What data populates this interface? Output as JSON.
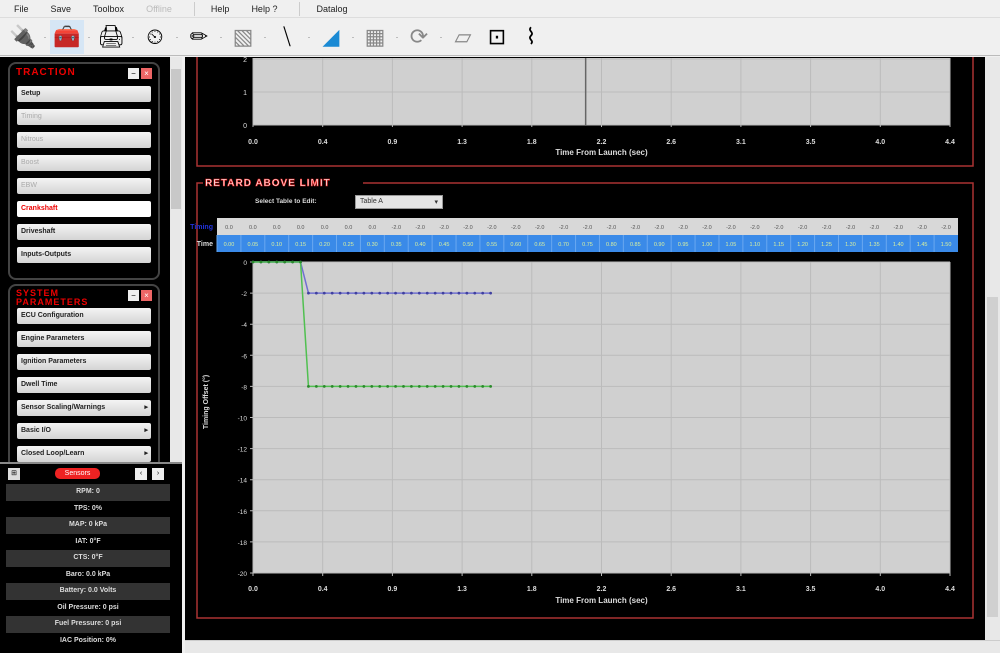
{
  "menu": [
    {
      "label": "File",
      "enabled": true
    },
    {
      "label": "Save",
      "enabled": true
    },
    {
      "label": "Toolbox",
      "enabled": true
    },
    {
      "label": "Offline",
      "enabled": false
    },
    {
      "label": "Help",
      "enabled": true
    },
    {
      "label": "Help ?",
      "enabled": true
    },
    {
      "label": "Datalog",
      "enabled": true
    }
  ],
  "toolbar": [
    "usb-cable-icon",
    "ecu-red-icon",
    "ecu-module-icon",
    "gauge-icon",
    "injector-icon",
    "table-editor-icon",
    "stripes-icon",
    "wedge-icon",
    "display-icon",
    "refresh-icon",
    "document-icon",
    "dual-display-icon",
    "pulse-icon"
  ],
  "traction": {
    "title": "TRACTION",
    "items": [
      {
        "label": "Setup",
        "state": "normal"
      },
      {
        "label": "Timing",
        "state": "disabled"
      },
      {
        "label": "Nitrous",
        "state": "disabled"
      },
      {
        "label": "Boost",
        "state": "disabled"
      },
      {
        "label": "EBW",
        "state": "disabled"
      },
      {
        "label": "Crankshaft",
        "state": "active"
      },
      {
        "label": "Driveshaft",
        "state": "normal"
      },
      {
        "label": "Inputs-Outputs",
        "state": "normal"
      }
    ]
  },
  "system": {
    "title": "SYSTEM PARAMETERS",
    "items": [
      {
        "label": "ECU Configuration",
        "sub": false
      },
      {
        "label": "Engine Parameters",
        "sub": false
      },
      {
        "label": "Ignition Parameters",
        "sub": false
      },
      {
        "label": "Dwell Time",
        "sub": false
      },
      {
        "label": "Sensor Scaling/Warnings",
        "sub": true
      },
      {
        "label": "Basic I/O",
        "sub": true
      },
      {
        "label": "Closed Loop/Learn",
        "sub": true
      }
    ]
  },
  "sensors": {
    "title": "Sensors",
    "rows": [
      "RPM: 0",
      "TPS: 0%",
      "MAP: 0 kPa",
      "IAT: 0°F",
      "CTS: 0°F",
      "Baro: 0.0 kPa",
      "Battery: 0.0 Volts",
      "Oil Pressure: 0 psi",
      "Fuel Pressure: 0 psi",
      "IAC Position: 0%"
    ]
  },
  "top_chart": {
    "xlabel": "Time From Launch (sec)",
    "xticks": [
      "0.0",
      "0.4",
      "0.9",
      "1.3",
      "1.8",
      "2.2",
      "2.6",
      "3.1",
      "3.5",
      "4.0",
      "4.4"
    ],
    "yticks": [
      "2",
      "1",
      "0"
    ]
  },
  "retard": {
    "title": "RETARD ABOVE LIMIT",
    "select_label": "Select Table to Edit:",
    "select_value": "Table A",
    "table": {
      "row1_label": "Timing",
      "row2_label": "Time",
      "timing": [
        "0.0",
        "0.0",
        "0.0",
        "0.0",
        "0.0",
        "0.0",
        "0.0",
        "-2.0",
        "-2.0",
        "-2.0",
        "-2.0",
        "-2.0",
        "-2.0",
        "-2.0",
        "-2.0",
        "-2.0",
        "-2.0",
        "-2.0",
        "-2.0",
        "-2.0",
        "-2.0",
        "-2.0",
        "-2.0",
        "-2.0",
        "-2.0",
        "-2.0",
        "-2.0",
        "-2.0",
        "-2.0",
        "-2.0",
        "-2.0"
      ],
      "time": [
        "0.00",
        "0.05",
        "0.10",
        "0.15",
        "0.20",
        "0.25",
        "0.30",
        "0.35",
        "0.40",
        "0.45",
        "0.50",
        "0.55",
        "0.60",
        "0.65",
        "0.70",
        "0.75",
        "0.80",
        "0.85",
        "0.90",
        "0.95",
        "1.00",
        "1.05",
        "1.10",
        "1.15",
        "1.20",
        "1.25",
        "1.30",
        "1.35",
        "1.40",
        "1.45",
        "1.50"
      ]
    }
  },
  "chart_data": {
    "type": "line",
    "xlabel": "Time From Launch (sec)",
    "ylabel": "Timing Offset (°)",
    "xlim": [
      0,
      4.4
    ],
    "ylim": [
      -20,
      0
    ],
    "xticks": [
      "0.0",
      "0.4",
      "0.9",
      "1.3",
      "1.8",
      "2.2",
      "2.6",
      "3.1",
      "3.5",
      "4.0",
      "4.4"
    ],
    "yticks": [
      "0",
      "-2",
      "-4",
      "-6",
      "-8",
      "-10",
      "-12",
      "-14",
      "-16",
      "-18",
      "-20"
    ],
    "grid": true,
    "series": [
      {
        "color": "#7070d0",
        "step_x": 0.3,
        "y_before": 0,
        "y_after": -2,
        "x_end": 1.5
      },
      {
        "color": "#50c050",
        "step_x": 0.3,
        "y_before": 0,
        "y_after": -8,
        "x_end": 1.5
      }
    ]
  }
}
